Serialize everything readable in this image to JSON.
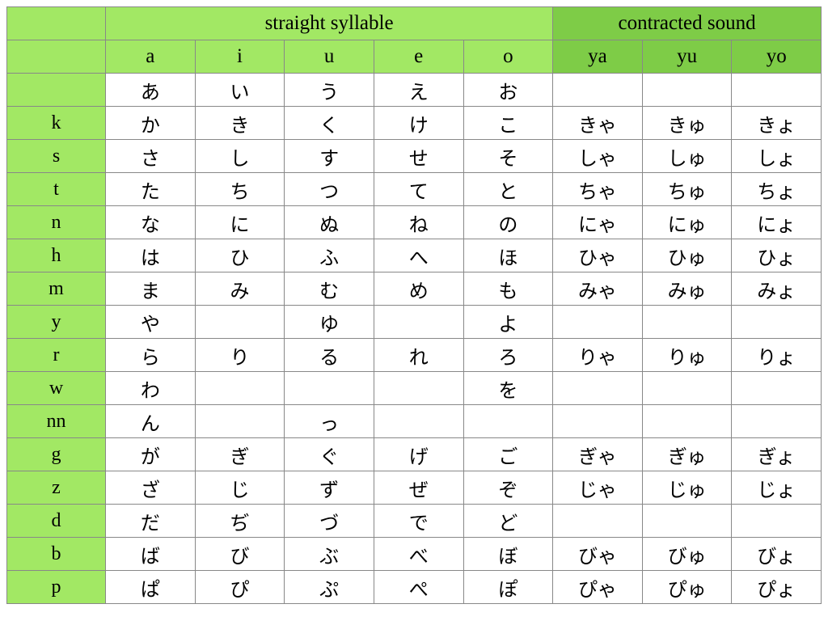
{
  "colors": {
    "light_green": "#a2e864",
    "dark_green": "#7ecc47",
    "border": "#888888"
  },
  "categories": {
    "straight": "straight syllable",
    "contracted": "contracted sound"
  },
  "columns": {
    "straight": [
      "a",
      "i",
      "u",
      "e",
      "o"
    ],
    "contracted": [
      "ya",
      "yu",
      "yo"
    ]
  },
  "rows": [
    {
      "label": "",
      "straight": [
        "あ",
        "い",
        "う",
        "え",
        "お"
      ],
      "contracted": [
        "",
        "",
        ""
      ]
    },
    {
      "label": "k",
      "straight": [
        "か",
        "き",
        "く",
        "け",
        "こ"
      ],
      "contracted": [
        "きゃ",
        "きゅ",
        "きょ"
      ]
    },
    {
      "label": "s",
      "straight": [
        "さ",
        "し",
        "す",
        "せ",
        "そ"
      ],
      "contracted": [
        "しゃ",
        "しゅ",
        "しょ"
      ]
    },
    {
      "label": "t",
      "straight": [
        "た",
        "ち",
        "つ",
        "て",
        "と"
      ],
      "contracted": [
        "ちゃ",
        "ちゅ",
        "ちょ"
      ]
    },
    {
      "label": "n",
      "straight": [
        "な",
        "に",
        "ぬ",
        "ね",
        "の"
      ],
      "contracted": [
        "にゃ",
        "にゅ",
        "にょ"
      ]
    },
    {
      "label": "h",
      "straight": [
        "は",
        "ひ",
        "ふ",
        "へ",
        "ほ"
      ],
      "contracted": [
        "ひゃ",
        "ひゅ",
        "ひょ"
      ]
    },
    {
      "label": "m",
      "straight": [
        "ま",
        "み",
        "む",
        "め",
        "も"
      ],
      "contracted": [
        "みゃ",
        "みゅ",
        "みょ"
      ]
    },
    {
      "label": "y",
      "straight": [
        "や",
        "",
        "ゆ",
        "",
        "よ"
      ],
      "contracted": [
        "",
        "",
        ""
      ]
    },
    {
      "label": "r",
      "straight": [
        "ら",
        "り",
        "る",
        "れ",
        "ろ"
      ],
      "contracted": [
        "りゃ",
        "りゅ",
        "りょ"
      ]
    },
    {
      "label": "w",
      "straight": [
        "わ",
        "",
        "",
        "",
        "を"
      ],
      "contracted": [
        "",
        "",
        ""
      ]
    },
    {
      "label": "nn",
      "straight": [
        "ん",
        "",
        "っ",
        "",
        ""
      ],
      "contracted": [
        "",
        "",
        ""
      ]
    },
    {
      "label": "g",
      "straight": [
        "が",
        "ぎ",
        "ぐ",
        "げ",
        "ご"
      ],
      "contracted": [
        "ぎゃ",
        "ぎゅ",
        "ぎょ"
      ]
    },
    {
      "label": "z",
      "straight": [
        "ざ",
        "じ",
        "ず",
        "ぜ",
        "ぞ"
      ],
      "contracted": [
        "じゃ",
        "じゅ",
        "じょ"
      ]
    },
    {
      "label": "d",
      "straight": [
        "だ",
        "ぢ",
        "づ",
        "で",
        "ど"
      ],
      "contracted": [
        "",
        "",
        ""
      ]
    },
    {
      "label": "b",
      "straight": [
        "ば",
        "び",
        "ぶ",
        "べ",
        "ぼ"
      ],
      "contracted": [
        "びゃ",
        "びゅ",
        "びょ"
      ]
    },
    {
      "label": "p",
      "straight": [
        "ぱ",
        "ぴ",
        "ぷ",
        "ぺ",
        "ぽ"
      ],
      "contracted": [
        "ぴゃ",
        "ぴゅ",
        "ぴょ"
      ]
    }
  ]
}
